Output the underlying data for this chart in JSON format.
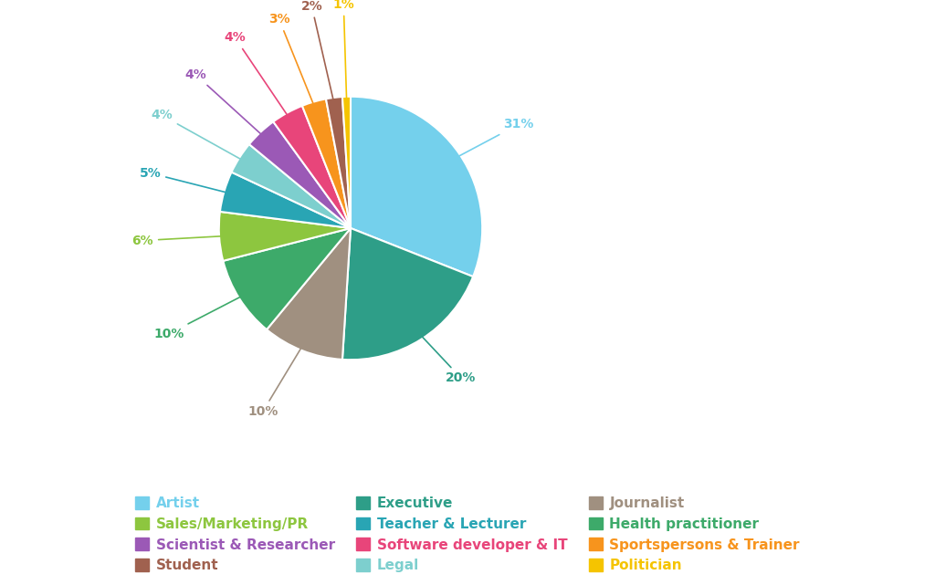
{
  "labels": [
    "Artist",
    "Executive",
    "Journalist",
    "Health practitioner",
    "Sales/Marketing/PR",
    "Teacher & Lecturer",
    "Legal",
    "Scientist & Researcher",
    "Software developer & IT",
    "Sportspersons & Trainer",
    "Student",
    "Politician"
  ],
  "values": [
    31,
    20,
    10,
    10,
    6,
    5,
    4,
    4,
    4,
    3,
    2,
    1
  ],
  "colors": [
    "#74D0EC",
    "#2E9E88",
    "#A09080",
    "#3DAA6A",
    "#8DC63F",
    "#29A5B4",
    "#7DCFCE",
    "#9B59B6",
    "#E8457A",
    "#F7941D",
    "#A0614F",
    "#F5C400"
  ],
  "legend_labels": [
    "Artist",
    "Sales/Marketing/PR",
    "Scientist & Researcher",
    "Student",
    "Executive",
    "Teacher & Lecturer",
    "Software developer & IT",
    "Legal",
    "Journalist",
    "Health practitioner",
    "Sportspersons & Trainer",
    "Politician"
  ],
  "legend_colors": [
    "#74D0EC",
    "#8DC63F",
    "#9B59B6",
    "#A0614F",
    "#2E9E88",
    "#29A5B4",
    "#E8457A",
    "#7DCFCE",
    "#A09080",
    "#3DAA6A",
    "#F7941D",
    "#F5C400"
  ],
  "background_color": "#FFFFFF",
  "startangle": 90
}
